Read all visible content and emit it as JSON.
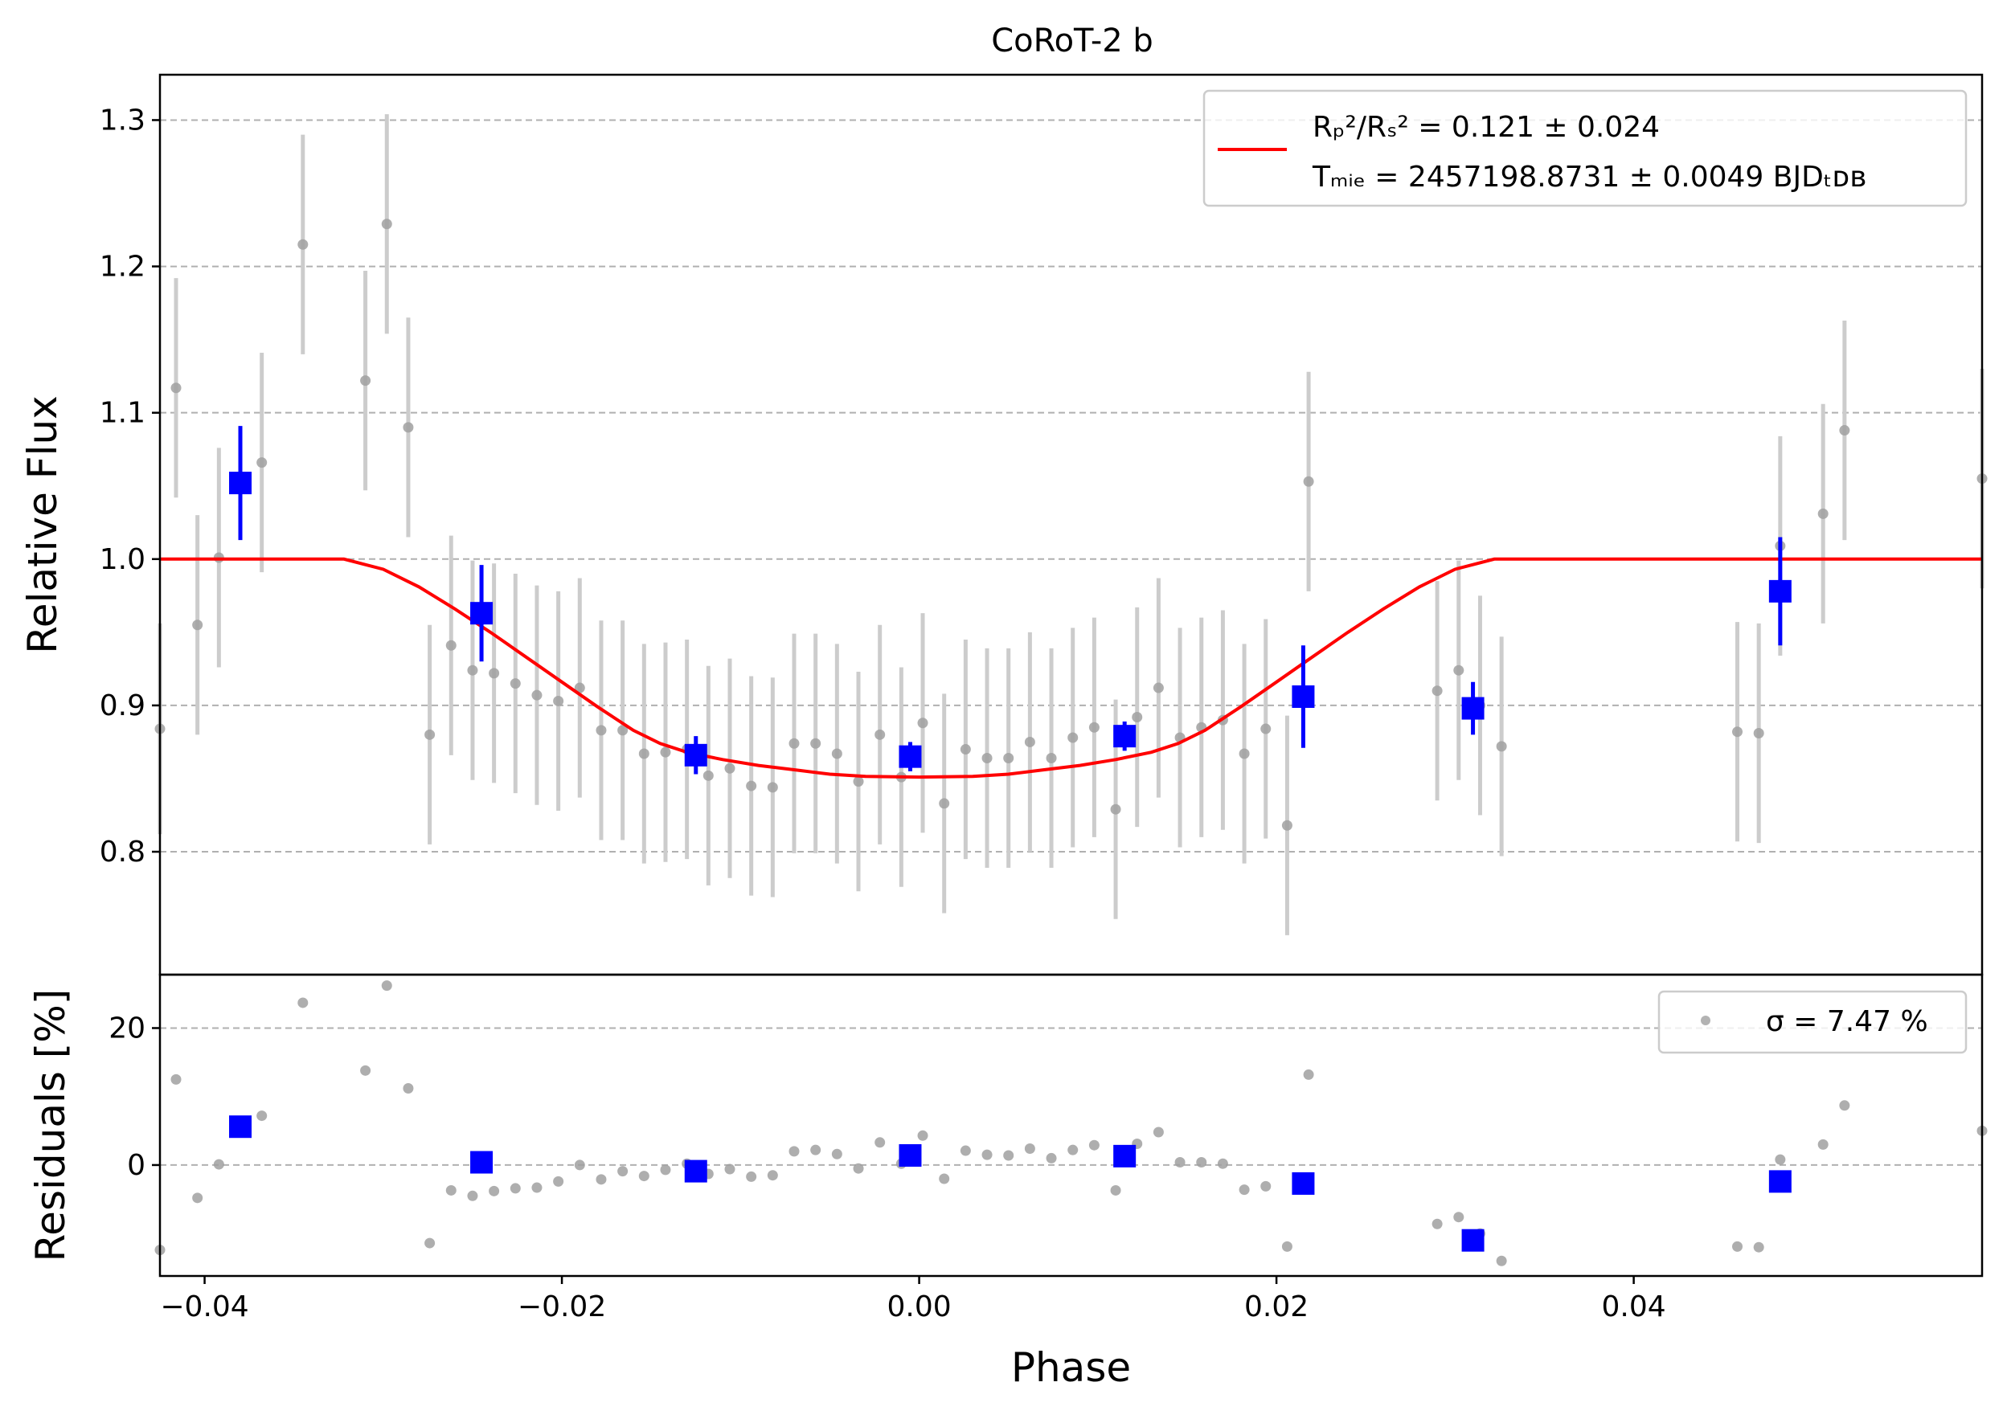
{
  "chart_data": {
    "type": "scatter",
    "title": "CoRoT-2 b",
    "xlabel": "Phase",
    "xlim": [
      -0.0425,
      0.0595
    ],
    "xticks": [
      -0.04,
      -0.02,
      0.0,
      0.02,
      0.04
    ],
    "xtick_labels": [
      "−0.04",
      "−0.02",
      "0.00",
      "0.02",
      "0.04"
    ],
    "grid": "horizontal dashed",
    "colors": {
      "raw": "#a0a0a0",
      "raw_err": "#cccccc",
      "binned": "#0000ff",
      "model": "#ff0000",
      "grid": "#b0b0b0",
      "legend_border": "#cccccc"
    },
    "top_panel": {
      "ylabel": "Relative Flux",
      "ylim": [
        0.716,
        1.331
      ],
      "yticks": [
        0.8,
        0.9,
        1.0,
        1.1,
        1.2,
        1.3
      ],
      "ytick_labels": [
        "0.8",
        "0.9",
        "1.0",
        "1.1",
        "1.2",
        "1.3"
      ],
      "legend": {
        "position": "upper-right",
        "line1": "Rₚ²/Rₛ² = 0.121 ± 0.024",
        "line2": "Tₘᵢₑ = 2457198.8731 ± 0.0049 BJDₜᴅʙ"
      },
      "raw": [
        [
          -0.0425,
          0.884,
          0.072
        ],
        [
          -0.0416,
          1.117,
          0.075
        ],
        [
          -0.0404,
          0.955,
          0.075
        ],
        [
          -0.0392,
          1.001,
          0.075
        ],
        [
          -0.0368,
          1.066,
          0.075
        ],
        [
          -0.0345,
          1.215,
          0.075
        ],
        [
          -0.031,
          1.122,
          0.075
        ],
        [
          -0.0298,
          1.229,
          0.075
        ],
        [
          -0.0286,
          1.09,
          0.075
        ],
        [
          -0.0274,
          0.88,
          0.075
        ],
        [
          -0.0262,
          0.941,
          0.075
        ],
        [
          -0.025,
          0.924,
          0.075
        ],
        [
          -0.0238,
          0.922,
          0.075
        ],
        [
          -0.0226,
          0.915,
          0.075
        ],
        [
          -0.0214,
          0.907,
          0.075
        ],
        [
          -0.0202,
          0.903,
          0.075
        ],
        [
          -0.019,
          0.912,
          0.075
        ],
        [
          -0.0178,
          0.883,
          0.075
        ],
        [
          -0.0166,
          0.883,
          0.075
        ],
        [
          -0.0154,
          0.867,
          0.075
        ],
        [
          -0.0142,
          0.868,
          0.075
        ],
        [
          -0.013,
          0.87,
          0.075
        ],
        [
          -0.0118,
          0.852,
          0.075
        ],
        [
          -0.0106,
          0.857,
          0.075
        ],
        [
          -0.0094,
          0.845,
          0.075
        ],
        [
          -0.0082,
          0.844,
          0.075
        ],
        [
          -0.007,
          0.874,
          0.075
        ],
        [
          -0.0058,
          0.874,
          0.075
        ],
        [
          -0.0046,
          0.867,
          0.075
        ],
        [
          -0.0034,
          0.848,
          0.075
        ],
        [
          -0.0022,
          0.88,
          0.075
        ],
        [
          -0.001,
          0.851,
          0.075
        ],
        [
          0.0002,
          0.888,
          0.075
        ],
        [
          0.0014,
          0.833,
          0.075
        ],
        [
          0.0026,
          0.87,
          0.075
        ],
        [
          0.0038,
          0.864,
          0.075
        ],
        [
          0.005,
          0.864,
          0.075
        ],
        [
          0.0062,
          0.875,
          0.075
        ],
        [
          0.0074,
          0.864,
          0.075
        ],
        [
          0.0086,
          0.878,
          0.075
        ],
        [
          0.0098,
          0.885,
          0.075
        ],
        [
          0.011,
          0.829,
          0.075
        ],
        [
          0.0122,
          0.892,
          0.075
        ],
        [
          0.0134,
          0.912,
          0.075
        ],
        [
          0.0146,
          0.878,
          0.075
        ],
        [
          0.0158,
          0.885,
          0.075
        ],
        [
          0.017,
          0.89,
          0.075
        ],
        [
          0.0182,
          0.867,
          0.075
        ],
        [
          0.0194,
          0.884,
          0.075
        ],
        [
          0.0206,
          0.818,
          0.075
        ],
        [
          0.0218,
          1.053,
          0.075
        ],
        [
          0.029,
          0.91,
          0.075
        ],
        [
          0.0302,
          0.924,
          0.075
        ],
        [
          0.0314,
          0.9,
          0.075
        ],
        [
          0.0326,
          0.872,
          0.075
        ],
        [
          0.0458,
          0.882,
          0.075
        ],
        [
          0.047,
          0.881,
          0.075
        ],
        [
          0.0482,
          1.009,
          0.075
        ],
        [
          0.0506,
          1.031,
          0.075
        ],
        [
          0.0518,
          1.088,
          0.075
        ],
        [
          0.0595,
          1.055,
          0.075
        ]
      ],
      "binned": [
        [
          -0.038,
          1.052,
          0.039
        ],
        [
          -0.0245,
          0.963,
          0.033
        ],
        [
          -0.0125,
          0.866,
          0.013
        ],
        [
          -0.0005,
          0.865,
          0.01
        ],
        [
          0.0115,
          0.879,
          0.01
        ],
        [
          0.0215,
          0.906,
          0.035
        ],
        [
          0.031,
          0.898,
          0.018
        ],
        [
          0.0482,
          0.978,
          0.037
        ]
      ],
      "model": [
        [
          -0.0425,
          1.0
        ],
        [
          -0.0322,
          1.0
        ],
        [
          -0.03,
          0.993
        ],
        [
          -0.028,
          0.981
        ],
        [
          -0.026,
          0.966
        ],
        [
          -0.024,
          0.95
        ],
        [
          -0.022,
          0.933
        ],
        [
          -0.02,
          0.916
        ],
        [
          -0.018,
          0.899
        ],
        [
          -0.016,
          0.883
        ],
        [
          -0.0145,
          0.874
        ],
        [
          -0.013,
          0.868
        ],
        [
          -0.011,
          0.863
        ],
        [
          -0.009,
          0.859
        ],
        [
          -0.007,
          0.856
        ],
        [
          -0.005,
          0.853
        ],
        [
          -0.003,
          0.8515
        ],
        [
          0.0,
          0.851
        ],
        [
          0.003,
          0.8515
        ],
        [
          0.005,
          0.853
        ],
        [
          0.007,
          0.856
        ],
        [
          0.009,
          0.859
        ],
        [
          0.011,
          0.863
        ],
        [
          0.013,
          0.868
        ],
        [
          0.0145,
          0.874
        ],
        [
          0.016,
          0.883
        ],
        [
          0.018,
          0.899
        ],
        [
          0.02,
          0.916
        ],
        [
          0.022,
          0.933
        ],
        [
          0.024,
          0.95
        ],
        [
          0.026,
          0.966
        ],
        [
          0.028,
          0.981
        ],
        [
          0.03,
          0.993
        ],
        [
          0.0322,
          1.0
        ],
        [
          0.0595,
          1.0
        ]
      ]
    },
    "bottom_panel": {
      "ylabel": "Residuals [%]",
      "ylim": [
        -16.2,
        27.8
      ],
      "yticks": [
        0,
        20
      ],
      "ytick_labels": [
        "0",
        "20"
      ],
      "legend": {
        "position": "upper-right",
        "label": "σ = 7.47 %"
      },
      "raw": [
        [
          -0.0425,
          -12.4
        ],
        [
          -0.0416,
          12.5
        ],
        [
          -0.0404,
          -4.8
        ],
        [
          -0.0392,
          0.1
        ],
        [
          -0.0368,
          7.2
        ],
        [
          -0.0345,
          23.7
        ],
        [
          -0.031,
          13.8
        ],
        [
          -0.0298,
          26.2
        ],
        [
          -0.0286,
          11.2
        ],
        [
          -0.0274,
          -11.4
        ],
        [
          -0.0262,
          -3.7
        ],
        [
          -0.025,
          -4.5
        ],
        [
          -0.0238,
          -3.8
        ],
        [
          -0.0226,
          -3.4
        ],
        [
          -0.0214,
          -3.3
        ],
        [
          -0.0202,
          -2.4
        ],
        [
          -0.019,
          0.0
        ],
        [
          -0.0178,
          -2.1
        ],
        [
          -0.0166,
          -0.9
        ],
        [
          -0.0154,
          -1.6
        ],
        [
          -0.0142,
          -0.7
        ],
        [
          -0.013,
          0.2
        ],
        [
          -0.0118,
          -1.3
        ],
        [
          -0.0106,
          -0.6
        ],
        [
          -0.0094,
          -1.7
        ],
        [
          -0.0082,
          -1.5
        ],
        [
          -0.007,
          2.0
        ],
        [
          -0.0058,
          2.2
        ],
        [
          -0.0046,
          1.6
        ],
        [
          -0.0034,
          -0.5
        ],
        [
          -0.0022,
          3.3
        ],
        [
          -0.001,
          0.2
        ],
        [
          0.0002,
          4.3
        ],
        [
          0.0014,
          -2.0
        ],
        [
          0.0026,
          2.1
        ],
        [
          0.0038,
          1.5
        ],
        [
          0.005,
          1.4
        ],
        [
          0.0062,
          2.4
        ],
        [
          0.0074,
          1.0
        ],
        [
          0.0086,
          2.2
        ],
        [
          0.0098,
          2.9
        ],
        [
          0.011,
          -3.7
        ],
        [
          0.0122,
          3.1
        ],
        [
          0.0134,
          4.8
        ],
        [
          0.0146,
          0.4
        ],
        [
          0.0158,
          0.4
        ],
        [
          0.017,
          0.2
        ],
        [
          0.0182,
          -3.6
        ],
        [
          0.0194,
          -3.1
        ],
        [
          0.0206,
          -11.9
        ],
        [
          0.0218,
          13.2
        ],
        [
          0.029,
          -8.6
        ],
        [
          0.0302,
          -7.6
        ],
        [
          0.0314,
          -10.0
        ],
        [
          0.0326,
          -14.0
        ],
        [
          0.0458,
          -11.9
        ],
        [
          0.047,
          -12.0
        ],
        [
          0.0482,
          0.8
        ],
        [
          0.0506,
          3.0
        ],
        [
          0.0518,
          8.7
        ],
        [
          0.0595,
          5.0
        ]
      ],
      "binned": [
        [
          -0.038,
          5.6
        ],
        [
          -0.0245,
          0.4
        ],
        [
          -0.0125,
          -0.9
        ],
        [
          -0.0005,
          1.4
        ],
        [
          0.0115,
          1.3
        ],
        [
          0.0215,
          -2.7
        ],
        [
          0.031,
          -11.0
        ],
        [
          0.0482,
          -2.4
        ]
      ]
    }
  }
}
